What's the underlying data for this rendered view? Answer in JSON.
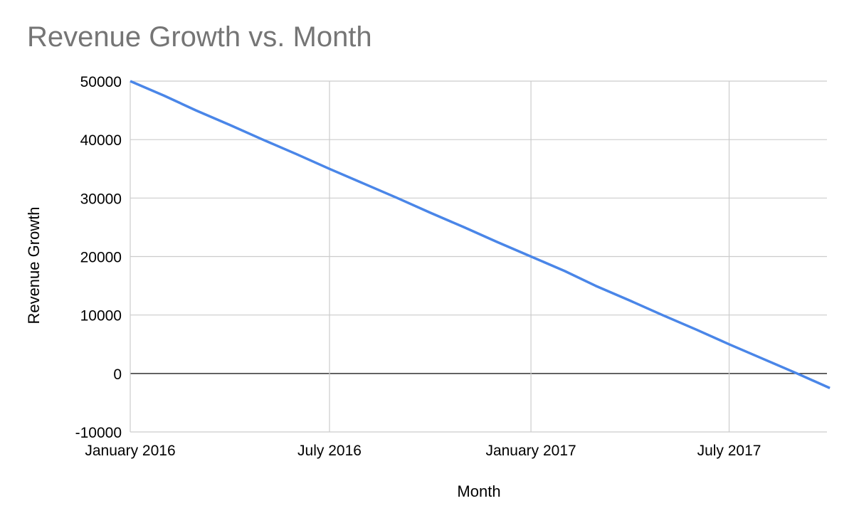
{
  "chart": {
    "title": "Revenue Growth vs. Month",
    "xlabel": "Month",
    "ylabel": "Revenue Growth",
    "line_color": "#4a86e8",
    "grid_color": "#cccccc",
    "zero_line_color": "#333333",
    "title_color": "#757575"
  },
  "chart_data": {
    "type": "line",
    "title": "Revenue Growth vs. Month",
    "xlabel": "Month",
    "ylabel": "Revenue Growth",
    "ylim": [
      -10000,
      50000
    ],
    "y_ticks": [
      50000,
      40000,
      30000,
      20000,
      10000,
      0,
      -10000
    ],
    "x_ticks": [
      "January 2016",
      "July 2016",
      "January 2017",
      "July 2017"
    ],
    "grid": true,
    "legend": "none",
    "x": [
      "Jan 2016",
      "Feb 2016",
      "Mar 2016",
      "Apr 2016",
      "May 2016",
      "Jun 2016",
      "Jul 2016",
      "Aug 2016",
      "Sep 2016",
      "Oct 2016",
      "Nov 2016",
      "Dec 2016",
      "Jan 2017",
      "Feb 2017",
      "Mar 2017",
      "Apr 2017",
      "May 2017",
      "Jun 2017",
      "Jul 2017",
      "Aug 2017",
      "Sep 2017",
      "Oct 2017"
    ],
    "series": [
      {
        "name": "Revenue Growth",
        "values": [
          50000,
          47500,
          45000,
          42500,
          40000,
          37500,
          35000,
          32500,
          30000,
          27500,
          25000,
          22500,
          20000,
          17500,
          15000,
          12500,
          10000,
          7500,
          5000,
          2500,
          0,
          -2500
        ]
      }
    ]
  }
}
